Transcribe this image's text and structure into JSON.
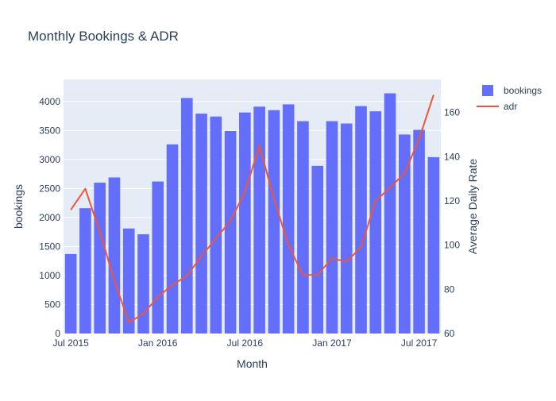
{
  "chart_data": {
    "type": "bar",
    "title": "Monthly Bookings & ADR",
    "xlabel": "Month",
    "ylabel": "bookings",
    "y2label": "Average Daily Rate",
    "x": [
      "2015-07",
      "2015-08",
      "2015-09",
      "2015-10",
      "2015-11",
      "2015-12",
      "2016-01",
      "2016-02",
      "2016-03",
      "2016-04",
      "2016-05",
      "2016-06",
      "2016-07",
      "2016-08",
      "2016-09",
      "2016-10",
      "2016-11",
      "2016-12",
      "2017-01",
      "2017-02",
      "2017-03",
      "2017-04",
      "2017-05",
      "2017-06",
      "2017-07",
      "2017-08"
    ],
    "x_tick_labels": [
      "Jul 2015",
      "Jan 2016",
      "Jul 2016",
      "Jan 2017",
      "Jul 2017"
    ],
    "x_tick_months": [
      "2015-07",
      "2016-01",
      "2016-07",
      "2017-01",
      "2017-07"
    ],
    "ylim": [
      0,
      4380
    ],
    "y_ticks": [
      0,
      500,
      1000,
      1500,
      2000,
      2500,
      3000,
      3500,
      4000
    ],
    "y2lim": [
      60,
      175
    ],
    "y2_ticks": [
      60,
      80,
      100,
      120,
      140,
      160
    ],
    "grid": true,
    "legend_position": "top-right",
    "series": [
      {
        "name": "bookings",
        "type": "bar",
        "color": "#636efa",
        "values": [
          1370,
          2160,
          2600,
          2690,
          1810,
          1710,
          2620,
          3260,
          4060,
          3790,
          3740,
          3490,
          3810,
          3910,
          3850,
          3950,
          3660,
          2890,
          3660,
          3620,
          3920,
          3830,
          4140,
          3430,
          3510,
          3040
        ]
      },
      {
        "name": "adr",
        "type": "line",
        "axis": "y2",
        "color": "#ef553b",
        "values": [
          116,
          125.5,
          106,
          84,
          65,
          69,
          76.5,
          82,
          86,
          95,
          103,
          111,
          124,
          145,
          121,
          100,
          86.5,
          86.5,
          94,
          92.5,
          99,
          120,
          126,
          132.5,
          148,
          168
        ]
      }
    ]
  }
}
